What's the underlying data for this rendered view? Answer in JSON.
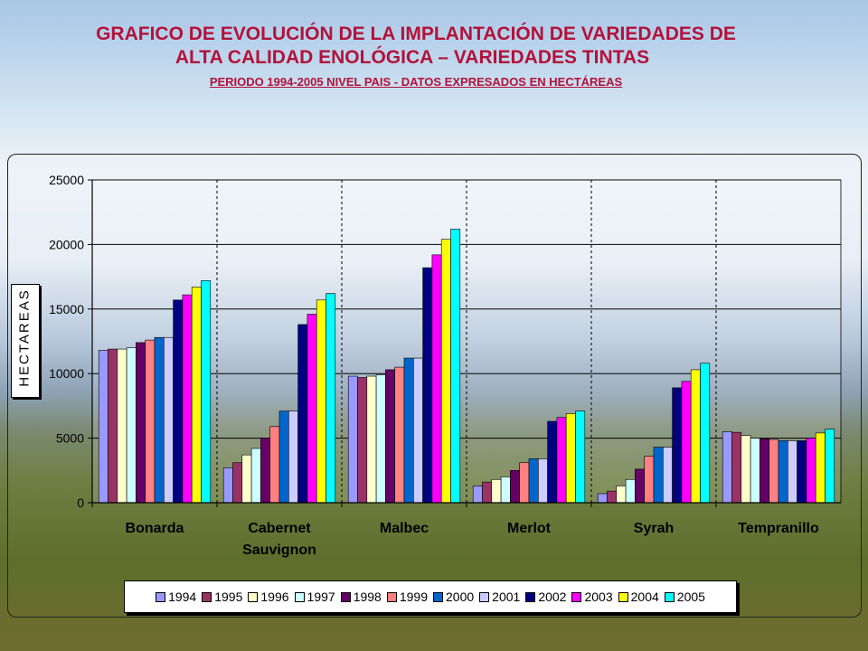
{
  "titles": {
    "line1": "GRAFICO DE EVOLUCIÓN DE LA IMPLANTACIÓN DE VARIEDADES DE",
    "line2": "ALTA CALIDAD ENOLÓGICA – VARIEDADES TINTAS",
    "line3": "PERIODO 1994-2005 NIVEL PAIS - DATOS EXPRESADOS EN HECTÁREAS"
  },
  "chart_data": {
    "type": "bar",
    "ylabel": "HECTAREAS",
    "ylim": [
      0,
      25000
    ],
    "yticks": [
      0,
      5000,
      10000,
      15000,
      20000,
      25000
    ],
    "legend_position": "bottom",
    "categories": [
      [
        "Bonarda"
      ],
      [
        "Cabernet",
        "Sauvignon"
      ],
      [
        "Malbec"
      ],
      [
        "Merlot"
      ],
      [
        "Syrah"
      ],
      [
        "Tempranillo"
      ]
    ],
    "series": [
      {
        "name": "1994",
        "color": "#9999ff",
        "values": [
          11800,
          2700,
          9800,
          1300,
          700,
          5500
        ]
      },
      {
        "name": "1995",
        "color": "#993366",
        "values": [
          11900,
          3100,
          9700,
          1600,
          900,
          5450
        ]
      },
      {
        "name": "1996",
        "color": "#ffffcc",
        "values": [
          11900,
          3700,
          9800,
          1800,
          1300,
          5200
        ]
      },
      {
        "name": "1997",
        "color": "#ccffff",
        "values": [
          12000,
          4200,
          9900,
          2000,
          1800,
          5000
        ]
      },
      {
        "name": "1998",
        "color": "#660066",
        "values": [
          12400,
          5000,
          10300,
          2500,
          2600,
          4950
        ]
      },
      {
        "name": "1999",
        "color": "#ff8080",
        "values": [
          12600,
          5900,
          10500,
          3100,
          3600,
          4900
        ]
      },
      {
        "name": "2000",
        "color": "#0066cc",
        "values": [
          12800,
          7100,
          11200,
          3400,
          4300,
          4800
        ]
      },
      {
        "name": "2001",
        "color": "#ccccff",
        "values": [
          12800,
          7100,
          11200,
          3400,
          4300,
          4800
        ]
      },
      {
        "name": "2002",
        "color": "#000080",
        "values": [
          15700,
          13800,
          18200,
          6300,
          8900,
          4800
        ]
      },
      {
        "name": "2003",
        "color": "#ff00ff",
        "values": [
          16100,
          14600,
          19200,
          6600,
          9400,
          5000
        ]
      },
      {
        "name": "2004",
        "color": "#ffff00",
        "values": [
          16700,
          15700,
          20400,
          6900,
          10300,
          5400
        ]
      },
      {
        "name": "2005",
        "color": "#00ffff",
        "values": [
          17200,
          16200,
          21200,
          7100,
          10800,
          5700
        ]
      }
    ]
  }
}
